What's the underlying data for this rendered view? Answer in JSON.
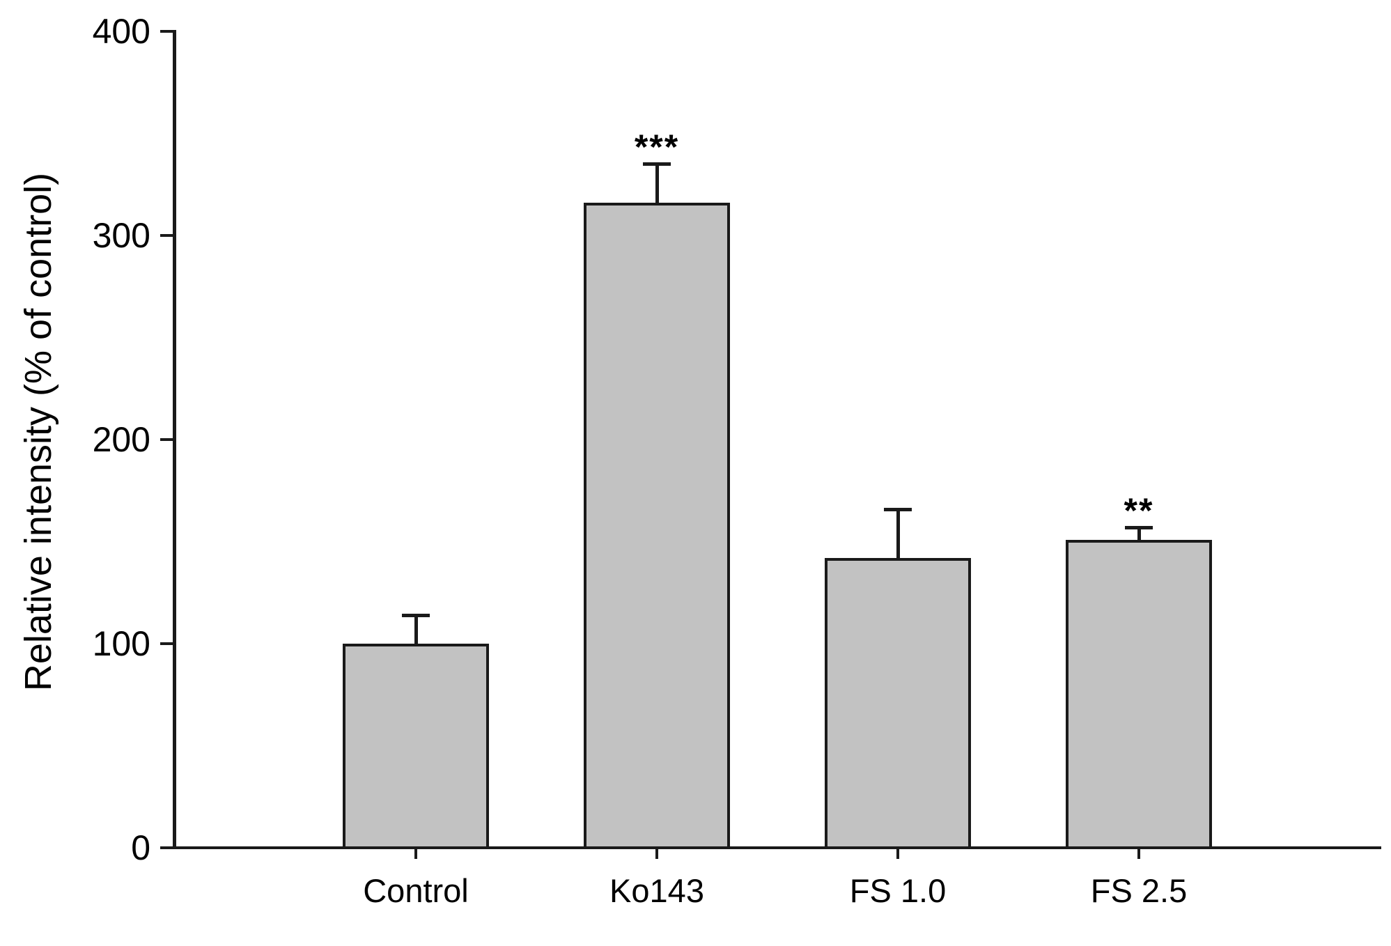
{
  "chart_data": {
    "type": "bar",
    "title": "",
    "xlabel": "",
    "ylabel": "Relative intensity (% of control)",
    "categories": [
      "Control",
      "Ko143",
      "FS 1.0",
      "FS 2.5"
    ],
    "values": [
      100,
      316,
      142,
      151
    ],
    "errors_plus": [
      14,
      19,
      24,
      6
    ],
    "significance": [
      "",
      "***",
      "",
      "**"
    ],
    "yticks": [
      0,
      100,
      200,
      300,
      400
    ],
    "ylim": [
      0,
      400
    ],
    "grid": false,
    "legend_position": "none",
    "bar_fill_color": "#c2c2c2",
    "line_color": "#1a1a1a",
    "background_color": "#ffffff"
  }
}
